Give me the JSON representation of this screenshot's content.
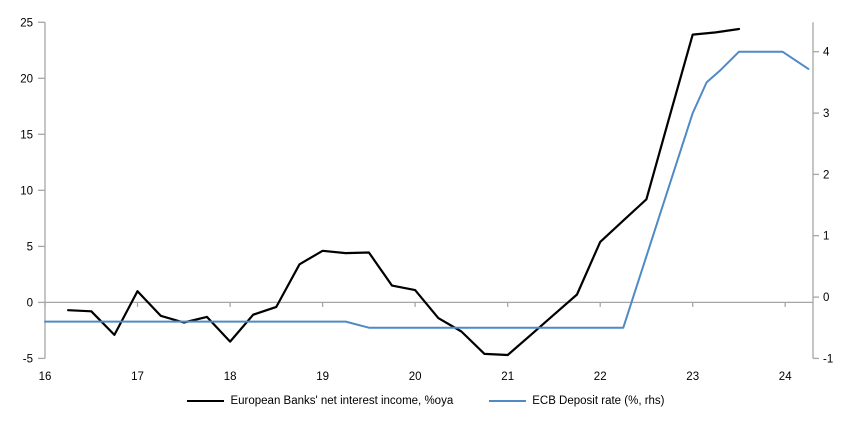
{
  "chart_data": {
    "type": "line",
    "title": "",
    "xlabel": "",
    "ylabel_left": "",
    "ylabel_right": "",
    "grid": "zero-line-only",
    "legend_position": "bottom-center",
    "x_axis": {
      "min": 16,
      "max": 24.3,
      "ticks": [
        16,
        17,
        18,
        19,
        20,
        21,
        22,
        23,
        24
      ],
      "tick_labels": [
        "16",
        "17",
        "18",
        "19",
        "20",
        "21",
        "22",
        "23",
        "24"
      ]
    },
    "y_axis_left": {
      "min": -5,
      "max": 25,
      "ticks": [
        -5,
        0,
        5,
        10,
        15,
        20,
        25
      ],
      "tick_labels": [
        "-5",
        "0",
        "5",
        "10",
        "15",
        "20",
        "25"
      ]
    },
    "y_axis_right": {
      "min": -1,
      "max": 4.48,
      "ticks": [
        -1,
        0,
        1,
        2,
        3,
        4
      ],
      "tick_labels": [
        "-1",
        "0",
        "1",
        "2",
        "3",
        "4"
      ]
    },
    "series": [
      {
        "name": "European Banks' net interest income, %oya",
        "axis": "left",
        "color": "#000000",
        "stroke_width": 2.2,
        "x": [
          16.25,
          16.5,
          16.75,
          17.0,
          17.25,
          17.5,
          17.75,
          18.0,
          18.25,
          18.5,
          18.75,
          19.0,
          19.25,
          19.5,
          19.75,
          20.0,
          20.25,
          20.5,
          20.75,
          21.0,
          21.25,
          21.5,
          21.75,
          22.0,
          22.25,
          22.5,
          22.75,
          23.0,
          23.25,
          23.5
        ],
        "values": [
          -0.7,
          -0.8,
          -2.9,
          1.0,
          -1.2,
          -1.8,
          -1.3,
          -3.5,
          -1.1,
          -0.4,
          3.4,
          4.6,
          4.4,
          4.45,
          1.5,
          1.1,
          -1.4,
          -2.6,
          -4.6,
          -4.7,
          -2.9,
          -1.1,
          0.7,
          5.4,
          7.3,
          9.2,
          16.6,
          23.9,
          24.1,
          24.4
        ]
      },
      {
        "name": "ECB Deposit rate (%, rhs)",
        "axis": "right",
        "color": "#4f8ac4",
        "stroke_width": 2,
        "x": [
          16.0,
          19.25,
          19.5,
          22.25,
          23.0,
          23.15,
          23.3,
          23.5,
          23.97,
          24.25
        ],
        "values": [
          -0.4,
          -0.4,
          -0.5,
          -0.5,
          3.0,
          3.5,
          3.7,
          4.0,
          4.0,
          3.72
        ]
      }
    ]
  },
  "colors": {
    "background": "#ffffff",
    "axis": "#a6a6a6",
    "tick_text": "#000000",
    "series_black": "#000000",
    "series_blue": "#4f8ac4"
  }
}
